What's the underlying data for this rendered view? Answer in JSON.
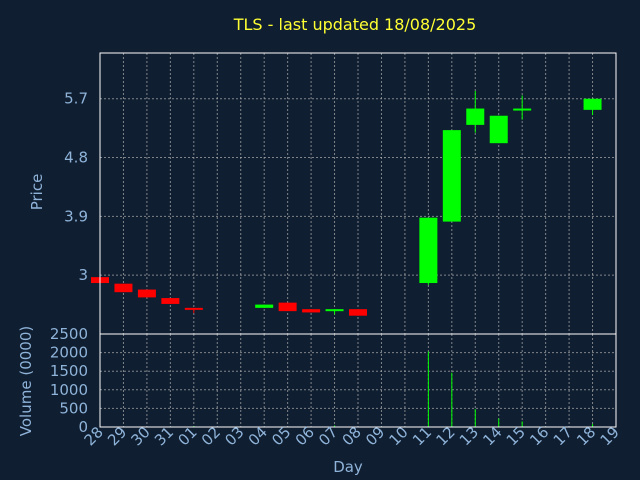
{
  "chart_data": {
    "type": "candlestick",
    "title": "TLS - last updated 18/08/2025",
    "xlabel": "Day",
    "price_panel": {
      "ylabel": "Price",
      "yticks": [
        3,
        3.9,
        4.8,
        5.7
      ],
      "ytick_labels": [
        "3",
        "3.9",
        "4.8",
        "5.7"
      ],
      "ylim": [
        2.1,
        6.4
      ],
      "grid": true
    },
    "volume_panel": {
      "ylabel": "Volume (0000)",
      "yticks": [
        0,
        500,
        1000,
        1500,
        2000,
        2500
      ],
      "ytick_labels": [
        "0",
        "500",
        "1000",
        "1500",
        "2000",
        "2500"
      ],
      "ylim": [
        0,
        2500
      ],
      "grid": true
    },
    "categories": [
      "28",
      "29",
      "30",
      "31",
      "01",
      "02",
      "03",
      "04",
      "05",
      "06",
      "07",
      "08",
      "09",
      "10",
      "11",
      "12",
      "13",
      "14",
      "15",
      "16",
      "17",
      "18",
      "19"
    ],
    "candles": [
      {
        "day": "28",
        "open": 2.97,
        "close": 2.88,
        "high": 2.97,
        "low": 2.88
      },
      {
        "day": "29",
        "open": 2.87,
        "close": 2.74,
        "high": 2.87,
        "low": 2.74
      },
      {
        "day": "30",
        "open": 2.78,
        "close": 2.66,
        "high": 2.78,
        "low": 2.66
      },
      {
        "day": "31",
        "open": 2.65,
        "close": 2.56,
        "high": 2.65,
        "low": 2.56
      },
      {
        "day": "01",
        "open": 2.5,
        "close": 2.48,
        "high": 2.5,
        "low": 2.42
      },
      {
        "day": "04",
        "open": 2.5,
        "close": 2.55,
        "high": 2.55,
        "low": 2.5
      },
      {
        "day": "05",
        "open": 2.58,
        "close": 2.45,
        "high": 2.58,
        "low": 2.45
      },
      {
        "day": "06",
        "open": 2.48,
        "close": 2.43,
        "high": 2.48,
        "low": 2.43
      },
      {
        "day": "07",
        "open": 2.45,
        "close": 2.48,
        "high": 2.48,
        "low": 2.4
      },
      {
        "day": "08",
        "open": 2.48,
        "close": 2.38,
        "high": 2.48,
        "low": 2.38
      },
      {
        "day": "11",
        "open": 2.88,
        "close": 3.88,
        "high": 3.88,
        "low": 2.85
      },
      {
        "day": "12",
        "open": 3.82,
        "close": 5.22,
        "high": 5.22,
        "low": 3.82
      },
      {
        "day": "13",
        "open": 5.3,
        "close": 5.55,
        "high": 5.82,
        "low": 5.18
      },
      {
        "day": "14",
        "open": 5.02,
        "close": 5.44,
        "high": 5.44,
        "low": 5.02
      },
      {
        "day": "15",
        "open": 5.53,
        "close": 5.55,
        "high": 5.75,
        "low": 5.38
      },
      {
        "day": "18",
        "open": 5.53,
        "close": 5.7,
        "high": 5.7,
        "low": 5.45
      }
    ],
    "volumes": [
      {
        "day": "28",
        "value": 15
      },
      {
        "day": "29",
        "value": 10
      },
      {
        "day": "30",
        "value": 10
      },
      {
        "day": "31",
        "value": 15
      },
      {
        "day": "01",
        "value": 25
      },
      {
        "day": "04",
        "value": 15
      },
      {
        "day": "05",
        "value": 10
      },
      {
        "day": "06",
        "value": 10
      },
      {
        "day": "07",
        "value": 40
      },
      {
        "day": "08",
        "value": 15
      },
      {
        "day": "11",
        "value": 2030
      },
      {
        "day": "12",
        "value": 1460
      },
      {
        "day": "13",
        "value": 480
      },
      {
        "day": "14",
        "value": 230
      },
      {
        "day": "15",
        "value": 150
      },
      {
        "day": "18",
        "value": 80
      }
    ],
    "colors": {
      "background": "#0f1e30",
      "up": "#00ff00",
      "down": "#ff0000",
      "title": "#ffff33",
      "axis_text": "#8fb3d9",
      "frame": "#ffffff",
      "grid": "#b0b0b0"
    }
  }
}
